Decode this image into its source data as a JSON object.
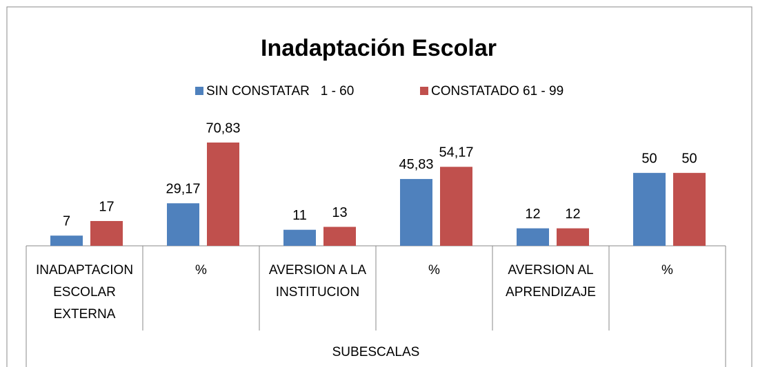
{
  "chart_data": {
    "type": "bar",
    "title": "Inadaptación Escolar",
    "x_label": "SUBESCALAS",
    "categories": [
      "INADAPTACION ESCOLAR EXTERNA",
      "%",
      "AVERSION A LA INSTITUCION",
      "%",
      "AVERSION AL APRENDIZAJE",
      "%"
    ],
    "series": [
      {
        "name": "SIN CONSTATAR   1 - 60",
        "color": "#4f81bd",
        "values": [
          7,
          29.17,
          11,
          45.83,
          12,
          50
        ],
        "value_labels": [
          "7",
          "29,17",
          "11",
          "45,83",
          "12",
          "50"
        ]
      },
      {
        "name": "CONSTATADO 61 - 99",
        "color": "#c0504d",
        "values": [
          17,
          70.83,
          13,
          54.17,
          12,
          50
        ],
        "value_labels": [
          "17",
          "70,83",
          "13",
          "54,17",
          "12",
          "50"
        ]
      }
    ],
    "legend": "top"
  }
}
